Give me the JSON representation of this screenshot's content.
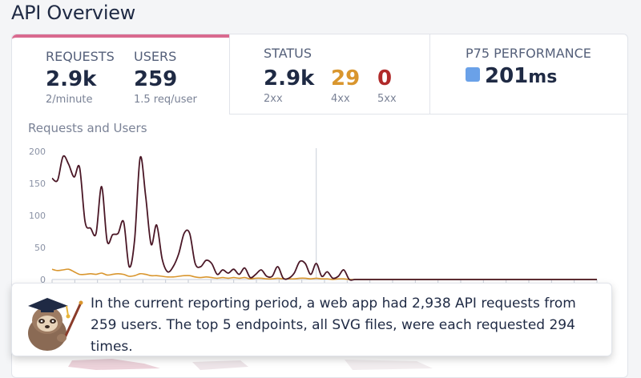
{
  "page": {
    "title": "API Overview"
  },
  "tabs": {
    "requests": {
      "label": "REQUESTS",
      "value": "2.9k",
      "sub": "2/minute"
    },
    "users": {
      "label": "USERS",
      "value": "259",
      "sub": "1.5 req/user"
    },
    "status": {
      "label": "STATUS",
      "codes": [
        {
          "value": "2.9k",
          "sub": "2xx",
          "color": "#1f2a44"
        },
        {
          "value": "29",
          "sub": "4xx",
          "color": "#d9962e"
        },
        {
          "value": "0",
          "sub": "5xx",
          "color": "#b02a2a"
        }
      ]
    },
    "performance": {
      "label": "P75 PERFORMANCE",
      "value": "201",
      "unit": "ms",
      "color": "#6aa1e8"
    }
  },
  "colors": {
    "active_tab": "#d96a8f",
    "requests_line": "#4a1726",
    "users_line": "#d9962e"
  },
  "chart_data": {
    "type": "line",
    "title": "Requests and Users",
    "ylim": [
      0,
      200
    ],
    "yticks": [
      "0",
      "50",
      "100",
      "150",
      "200"
    ],
    "grid": false,
    "x": [
      0,
      1,
      2,
      3,
      4,
      5,
      6,
      7,
      8,
      9,
      10,
      11,
      12,
      13,
      14,
      15,
      16,
      17,
      18,
      19,
      20,
      21,
      22,
      23,
      24,
      25,
      26,
      27,
      28,
      29,
      30,
      31,
      32,
      33,
      34,
      35,
      36,
      37,
      38,
      39,
      40,
      41,
      42,
      43,
      44,
      45,
      46,
      47,
      48,
      49,
      50,
      51,
      52,
      53,
      54,
      55,
      56,
      57,
      58,
      59,
      60,
      61,
      62,
      63,
      64,
      65,
      66,
      67,
      68,
      69,
      70,
      71,
      72,
      73,
      74,
      75,
      76,
      77,
      78,
      79,
      80,
      81,
      82,
      83,
      84,
      85,
      86,
      87,
      88,
      89,
      90,
      91,
      92,
      93,
      94,
      95,
      96,
      97,
      98,
      99
    ],
    "series": [
      {
        "name": "Requests",
        "color": "#4a1726",
        "values": [
          158,
          155,
          192,
          180,
          160,
          175,
          90,
          80,
          72,
          145,
          60,
          70,
          72,
          90,
          20,
          62,
          190,
          130,
          55,
          85,
          32,
          12,
          20,
          40,
          72,
          72,
          25,
          20,
          30,
          25,
          8,
          15,
          10,
          16,
          8,
          18,
          3,
          8,
          15,
          5,
          5,
          20,
          2,
          2,
          10,
          28,
          25,
          8,
          25,
          5,
          12,
          2,
          5,
          15,
          0,
          0,
          0,
          0,
          0,
          0,
          0,
          0,
          0,
          0,
          0,
          0,
          0,
          0,
          0,
          0,
          0,
          0,
          0,
          0,
          0,
          0,
          0,
          0,
          0,
          0,
          0,
          0,
          0,
          0,
          0,
          0,
          0,
          0,
          0,
          0,
          0,
          0,
          0,
          0,
          0,
          0,
          0,
          0,
          0,
          0
        ]
      },
      {
        "name": "Users",
        "color": "#d9962e",
        "values": [
          16,
          14,
          15,
          16,
          12,
          8,
          8,
          9,
          8,
          10,
          7,
          8,
          9,
          8,
          5,
          6,
          9,
          8,
          6,
          6,
          5,
          4,
          4,
          5,
          6,
          6,
          4,
          3,
          4,
          3,
          2,
          3,
          2,
          3,
          2,
          3,
          1,
          2,
          2,
          1,
          1,
          2,
          1,
          1,
          1,
          2,
          2,
          1,
          2,
          1,
          1,
          0,
          1,
          1,
          0,
          0,
          0,
          0,
          0,
          0,
          0,
          0,
          0,
          0,
          0,
          0,
          0,
          0,
          0,
          0,
          0,
          0,
          0,
          0,
          0,
          0,
          0,
          0,
          0,
          0,
          0,
          0,
          0,
          0,
          0,
          0,
          0,
          0,
          0,
          0,
          0,
          0,
          0,
          0,
          0,
          0,
          0,
          0,
          0,
          0
        ]
      }
    ]
  },
  "callout": {
    "text": "In the current reporting period, a web app had 2,938 API requests from 259 users. The top 5 endpoints, all SVG files, were each requested 294 times."
  }
}
